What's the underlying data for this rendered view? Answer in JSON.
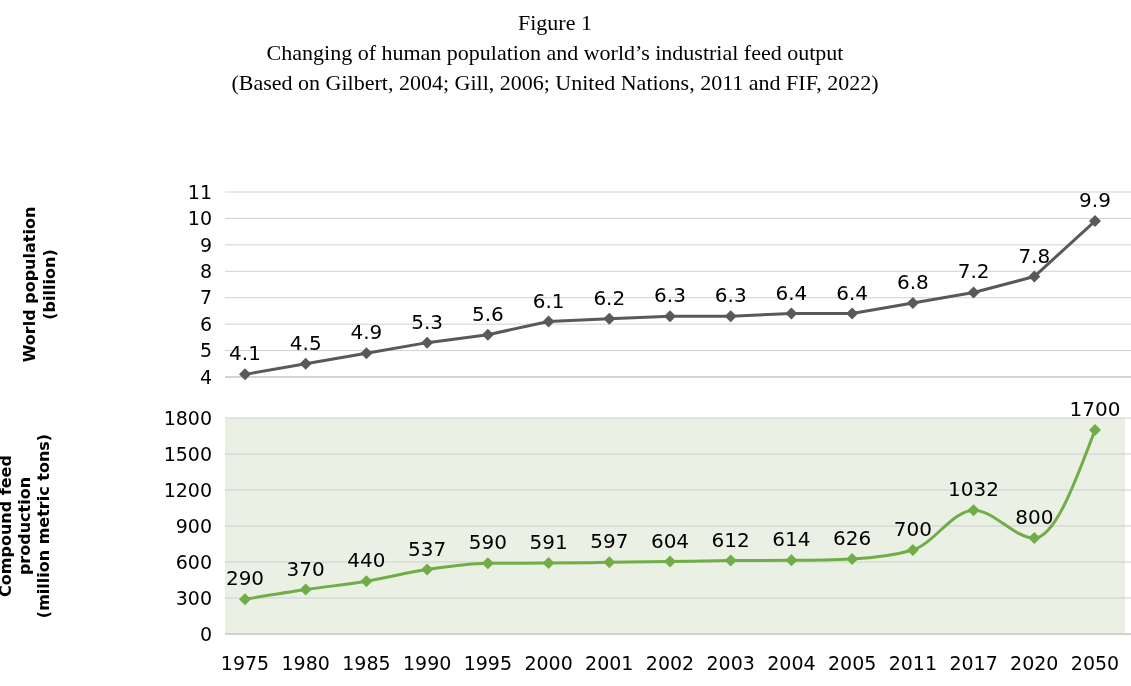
{
  "chart_data": [
    {
      "type": "line",
      "title": "Figure 1",
      "subtitle": "Changing of human population and world’s industrial feed output",
      "annotations": [
        "(Based on Gilbert, 2004; Gill, 2006; United Nations, 2011 and FIF, 2022)"
      ],
      "ylabel": "World population\n(billion)",
      "categories": [
        "1975",
        "1980",
        "1985",
        "1990",
        "1995",
        "2000",
        "2001",
        "2002",
        "2003",
        "2004",
        "2005",
        "2011",
        "2017",
        "2020",
        "2050"
      ],
      "series": [
        {
          "color": "#595959",
          "values": [
            4.1,
            4.5,
            4.9,
            5.3,
            5.6,
            6.1,
            6.2,
            6.3,
            6.3,
            6.4,
            6.4,
            6.8,
            7.2,
            7.8,
            9.9
          ]
        }
      ],
      "ylim": [
        4,
        11
      ],
      "yticks": [
        4,
        5,
        6,
        7,
        8,
        9,
        10,
        11
      ],
      "grid": "y",
      "marker": "diamond",
      "data_labels": true,
      "tick_labels": "y"
    },
    {
      "type": "line",
      "ylabel": "Compound feed\nproduction\n(million metric tons)",
      "categories": [
        "1975",
        "1980",
        "1985",
        "1990",
        "1995",
        "2000",
        "2001",
        "2002",
        "2003",
        "2004",
        "2005",
        "2011",
        "2017",
        "2020",
        "2050"
      ],
      "series": [
        {
          "color": "#70ad47",
          "values": [
            290,
            370,
            440,
            537,
            590,
            591,
            597,
            604,
            612,
            614,
            626,
            700,
            1032,
            800,
            1700
          ]
        }
      ],
      "ylim": [
        0,
        1800
      ],
      "yticks": [
        0,
        300,
        600,
        900,
        1200,
        1500,
        1800
      ],
      "grid": "y",
      "marker": "diamond",
      "data_labels": true
    }
  ]
}
